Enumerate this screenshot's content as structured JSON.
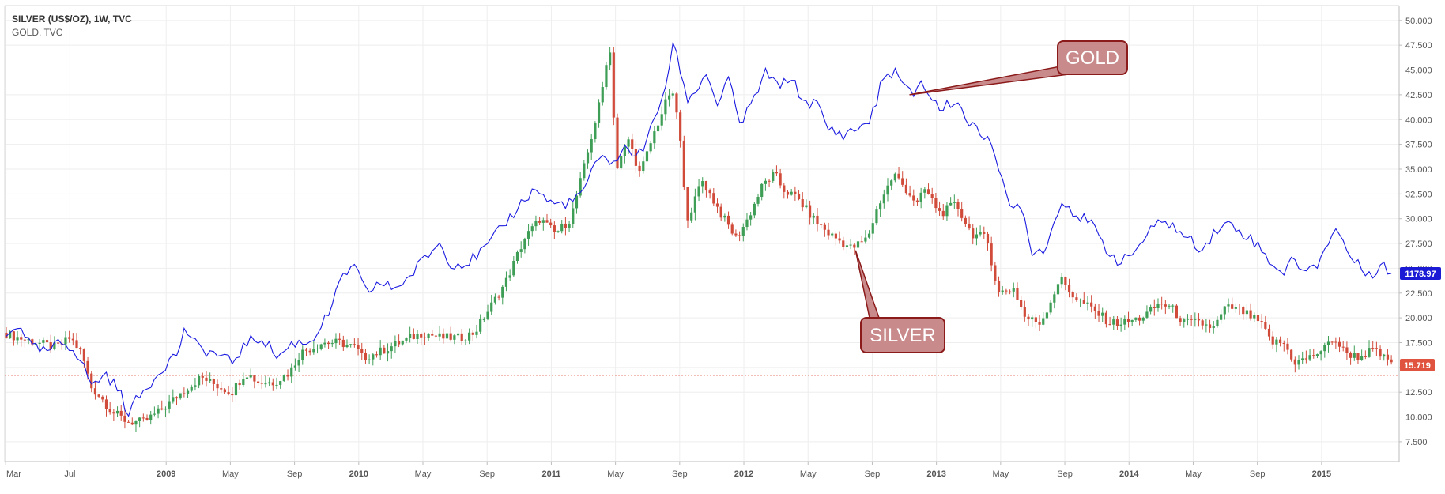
{
  "chart_data": {
    "type": "candlestick+line",
    "legend": {
      "line1": "SILVER (US$/OZ), 1W, TVC",
      "line2": "GOLD, TVC"
    },
    "x_axis": {
      "labels": [
        "Mar",
        "Jul",
        "2009",
        "May",
        "Sep",
        "2010",
        "May",
        "Sep",
        "2011",
        "May",
        "Sep",
        "2012",
        "May",
        "Sep",
        "2013",
        "May",
        "Sep",
        "2014",
        "May",
        "Sep",
        "2015"
      ],
      "start": "2008-03",
      "end": "2015-05"
    },
    "y_axis": {
      "ticks": [
        "7.500",
        "10.000",
        "12.500",
        "15.000",
        "17.500",
        "20.000",
        "22.500",
        "25.000",
        "27.500",
        "30.000",
        "32.500",
        "35.000",
        "37.500",
        "40.000",
        "42.500",
        "45.000",
        "47.500",
        "50.000"
      ],
      "min": 5.5,
      "max": 51.5,
      "grid": true,
      "position": "right"
    },
    "silver_keypoints": [
      [
        2008.17,
        18.5
      ],
      [
        2008.25,
        18.0
      ],
      [
        2008.35,
        17.5
      ],
      [
        2008.45,
        17.0
      ],
      [
        2008.52,
        18.0
      ],
      [
        2008.58,
        16.5
      ],
      [
        2008.63,
        13.0
      ],
      [
        2008.68,
        12.0
      ],
      [
        2008.74,
        10.5
      ],
      [
        2008.82,
        9.5
      ],
      [
        2008.9,
        9.5
      ],
      [
        2008.98,
        10.5
      ],
      [
        2009.1,
        12.5
      ],
      [
        2009.2,
        14.0
      ],
      [
        2009.3,
        13.0
      ],
      [
        2009.36,
        12.5
      ],
      [
        2009.43,
        14.5
      ],
      [
        2009.5,
        13.5
      ],
      [
        2009.58,
        13.5
      ],
      [
        2009.66,
        14.5
      ],
      [
        2009.72,
        16.5
      ],
      [
        2009.83,
        17.5
      ],
      [
        2009.92,
        17.5
      ],
      [
        2010.0,
        17.0
      ],
      [
        2010.04,
        16.0
      ],
      [
        2010.12,
        16.5
      ],
      [
        2010.23,
        17.5
      ],
      [
        2010.35,
        18.5
      ],
      [
        2010.45,
        18.0
      ],
      [
        2010.55,
        18.0
      ],
      [
        2010.62,
        18.5
      ],
      [
        2010.7,
        21.0
      ],
      [
        2010.78,
        23.5
      ],
      [
        2010.88,
        28.0
      ],
      [
        2010.96,
        30.0
      ],
      [
        2011.04,
        28.5
      ],
      [
        2011.12,
        30.0
      ],
      [
        2011.2,
        36.0
      ],
      [
        2011.28,
        42.5
      ],
      [
        2011.32,
        48.0
      ],
      [
        2011.36,
        35.0
      ],
      [
        2011.42,
        38.0
      ],
      [
        2011.48,
        34.5
      ],
      [
        2011.56,
        39.0
      ],
      [
        2011.64,
        43.0
      ],
      [
        2011.68,
        40.0
      ],
      [
        2011.72,
        30.0
      ],
      [
        2011.76,
        31.5
      ],
      [
        2011.8,
        34.0
      ],
      [
        2011.9,
        30.5
      ],
      [
        2011.98,
        28.0
      ],
      [
        2012.04,
        30.0
      ],
      [
        2012.12,
        33.5
      ],
      [
        2012.18,
        34.5
      ],
      [
        2012.22,
        33.0
      ],
      [
        2012.3,
        32.0
      ],
      [
        2012.38,
        30.0
      ],
      [
        2012.46,
        28.5
      ],
      [
        2012.54,
        27.5
      ],
      [
        2012.58,
        27.0
      ],
      [
        2012.66,
        28.0
      ],
      [
        2012.72,
        31.5
      ],
      [
        2012.8,
        34.5
      ],
      [
        2012.86,
        33.0
      ],
      [
        2012.92,
        31.5
      ],
      [
        2012.96,
        33.0
      ],
      [
        2013.04,
        30.5
      ],
      [
        2013.12,
        31.5
      ],
      [
        2013.2,
        28.5
      ],
      [
        2013.28,
        28.0
      ],
      [
        2013.34,
        22.5
      ],
      [
        2013.42,
        23.0
      ],
      [
        2013.48,
        20.0
      ],
      [
        2013.56,
        19.5
      ],
      [
        2013.62,
        22.0
      ],
      [
        2013.66,
        24.0
      ],
      [
        2013.74,
        22.0
      ],
      [
        2013.82,
        21.0
      ],
      [
        2013.92,
        19.5
      ],
      [
        2014.0,
        19.5
      ],
      [
        2014.08,
        20.0
      ],
      [
        2014.12,
        20.5
      ],
      [
        2014.18,
        21.5
      ],
      [
        2014.24,
        21.0
      ],
      [
        2014.3,
        19.5
      ],
      [
        2014.38,
        19.5
      ],
      [
        2014.46,
        19.0
      ],
      [
        2014.52,
        21.0
      ],
      [
        2014.56,
        21.0
      ],
      [
        2014.62,
        20.5
      ],
      [
        2014.7,
        19.5
      ],
      [
        2014.76,
        17.5
      ],
      [
        2014.82,
        17.5
      ],
      [
        2014.88,
        15.5
      ],
      [
        2014.96,
        16.0
      ],
      [
        2015.04,
        17.0
      ],
      [
        2015.08,
        18.0
      ],
      [
        2015.14,
        16.5
      ],
      [
        2015.22,
        16.0
      ],
      [
        2015.28,
        16.8
      ],
      [
        2015.36,
        15.7
      ]
    ],
    "gold_keypoints": [
      [
        2008.17,
        18.0
      ],
      [
        2008.24,
        19.5
      ],
      [
        2008.3,
        17.0
      ],
      [
        2008.38,
        16.5
      ],
      [
        2008.45,
        17.5
      ],
      [
        2008.52,
        17.0
      ],
      [
        2008.56,
        15.5
      ],
      [
        2008.62,
        13.0
      ],
      [
        2008.68,
        14.5
      ],
      [
        2008.76,
        12.5
      ],
      [
        2008.8,
        10.5
      ],
      [
        2008.86,
        12.0
      ],
      [
        2008.92,
        13.5
      ],
      [
        2008.98,
        15.0
      ],
      [
        2009.06,
        16.5
      ],
      [
        2009.1,
        19.0
      ],
      [
        2009.16,
        17.0
      ],
      [
        2009.24,
        16.5
      ],
      [
        2009.34,
        15.5
      ],
      [
        2009.42,
        17.5
      ],
      [
        2009.5,
        18.0
      ],
      [
        2009.58,
        16.0
      ],
      [
        2009.66,
        17.5
      ],
      [
        2009.74,
        17.5
      ],
      [
        2009.8,
        19.0
      ],
      [
        2009.86,
        21.0
      ],
      [
        2009.92,
        24.5
      ],
      [
        2009.98,
        25.0
      ],
      [
        2010.04,
        22.5
      ],
      [
        2010.1,
        23.5
      ],
      [
        2010.18,
        23.0
      ],
      [
        2010.26,
        24.0
      ],
      [
        2010.34,
        26.0
      ],
      [
        2010.42,
        27.5
      ],
      [
        2010.48,
        25.5
      ],
      [
        2010.56,
        25.5
      ],
      [
        2010.66,
        27.0
      ],
      [
        2010.74,
        29.0
      ],
      [
        2010.8,
        30.5
      ],
      [
        2010.86,
        32.0
      ],
      [
        2010.92,
        33.0
      ],
      [
        2011.0,
        31.5
      ],
      [
        2011.06,
        31.5
      ],
      [
        2011.14,
        32.0
      ],
      [
        2011.22,
        35.0
      ],
      [
        2011.28,
        36.5
      ],
      [
        2011.32,
        35.5
      ],
      [
        2011.38,
        37.0
      ],
      [
        2011.46,
        36.5
      ],
      [
        2011.54,
        40.0
      ],
      [
        2011.6,
        44.0
      ],
      [
        2011.64,
        48.0
      ],
      [
        2011.7,
        42.0
      ],
      [
        2011.76,
        43.0
      ],
      [
        2011.8,
        45.0
      ],
      [
        2011.86,
        41.5
      ],
      [
        2011.92,
        44.0
      ],
      [
        2011.98,
        39.5
      ],
      [
        2012.04,
        41.5
      ],
      [
        2012.12,
        45.0
      ],
      [
        2012.18,
        43.0
      ],
      [
        2012.24,
        44.5
      ],
      [
        2012.3,
        42.0
      ],
      [
        2012.38,
        41.5
      ],
      [
        2012.44,
        39.0
      ],
      [
        2012.52,
        38.5
      ],
      [
        2012.58,
        39.0
      ],
      [
        2012.66,
        40.0
      ],
      [
        2012.72,
        44.0
      ],
      [
        2012.78,
        45.0
      ],
      [
        2012.84,
        43.0
      ],
      [
        2012.88,
        42.5
      ],
      [
        2012.92,
        44.0
      ],
      [
        2012.96,
        42.5
      ],
      [
        2013.02,
        41.0
      ],
      [
        2013.1,
        42.0
      ],
      [
        2013.16,
        40.0
      ],
      [
        2013.22,
        38.5
      ],
      [
        2013.28,
        38.5
      ],
      [
        2013.32,
        35.0
      ],
      [
        2013.38,
        31.0
      ],
      [
        2013.44,
        31.5
      ],
      [
        2013.5,
        26.5
      ],
      [
        2013.56,
        27.0
      ],
      [
        2013.62,
        30.0
      ],
      [
        2013.66,
        32.0
      ],
      [
        2013.72,
        30.5
      ],
      [
        2013.8,
        29.5
      ],
      [
        2013.88,
        27.0
      ],
      [
        2013.96,
        25.5
      ],
      [
        2014.04,
        27.0
      ],
      [
        2014.1,
        28.5
      ],
      [
        2014.18,
        30.0
      ],
      [
        2014.24,
        29.0
      ],
      [
        2014.3,
        28.0
      ],
      [
        2014.38,
        27.0
      ],
      [
        2014.46,
        29.0
      ],
      [
        2014.52,
        29.5
      ],
      [
        2014.6,
        28.5
      ],
      [
        2014.66,
        27.5
      ],
      [
        2014.72,
        26.0
      ],
      [
        2014.8,
        24.5
      ],
      [
        2014.86,
        26.0
      ],
      [
        2014.92,
        24.5
      ],
      [
        2014.98,
        25.5
      ],
      [
        2015.04,
        28.0
      ],
      [
        2015.08,
        29.0
      ],
      [
        2015.14,
        26.5
      ],
      [
        2015.2,
        25.0
      ],
      [
        2015.26,
        24.5
      ],
      [
        2015.32,
        25.5
      ],
      [
        2015.36,
        24.0
      ]
    ],
    "silver_last_price": "15.719",
    "gold_last_price": "1178.97",
    "reference_line": 14.2,
    "annotations": [
      {
        "text": "GOLD",
        "target": [
          2012.86,
          42.5
        ]
      },
      {
        "text": "SILVER",
        "target": [
          2012.58,
          26.8
        ]
      }
    ],
    "colors": {
      "up_candle": "#3e9e56",
      "down_candle": "#d14b3a",
      "gold_line": "#1a1ae0",
      "grid": "#eeeeee",
      "axis_text": "#555555",
      "silver_label_bg": "#e0533e",
      "gold_label_bg": "#1b1bd6",
      "callout_bg": "#c98a8c",
      "callout_border": "#8b1a1a",
      "ref_line": "#e0533e"
    }
  }
}
